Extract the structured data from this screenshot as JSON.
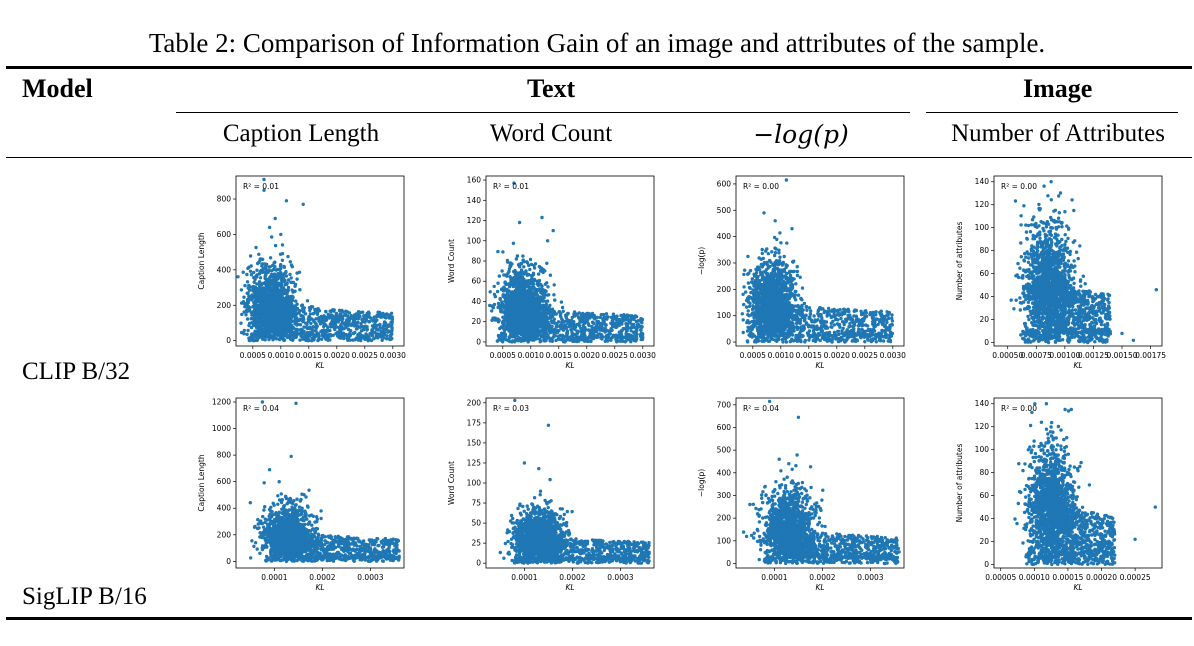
{
  "caption": "Table 2: Comparison of Information Gain of an image and attributes of the sample.",
  "header": {
    "model": "Model",
    "text_group": "Text",
    "image_group": "Image",
    "columns": [
      "Caption Length",
      "Word Count",
      "−log(p)",
      "Number of Attributes"
    ]
  },
  "rows": [
    {
      "label": "CLIP B/32",
      "plots": [
        {
          "ylabel": "Caption Length",
          "xlabel": "KL",
          "r2": "R² = 0.01",
          "xticks": [
            "0.0005",
            "0.0010",
            "0.0015",
            "0.0020",
            "0.0025",
            "0.0030"
          ],
          "yticks": [
            "0",
            "200",
            "400",
            "600",
            "800"
          ],
          "xlim": [
            0.0002,
            0.0032
          ],
          "ylim": [
            -30,
            930
          ],
          "cluster": {
            "xc": 0.00085,
            "yc": 160,
            "peak": 430,
            "tail_end": 0.003,
            "tail_y": 150
          },
          "outliers": [
            [
              0.0007,
              910
            ],
            [
              0.0007,
              850
            ],
            [
              0.0011,
              790
            ],
            [
              0.0014,
              770
            ],
            [
              0.0009,
              690
            ],
            [
              0.001,
              600
            ],
            [
              0.0008,
              640
            ]
          ]
        },
        {
          "ylabel": "Word Count",
          "xlabel": "KL",
          "r2": "R² = 0.01",
          "xticks": [
            "0.0005",
            "0.0010",
            "0.0015",
            "0.0020",
            "0.0025",
            "0.0030"
          ],
          "yticks": [
            "0",
            "20",
            "40",
            "60",
            "80",
            "100",
            "120",
            "140",
            "160"
          ],
          "xlim": [
            0.0002,
            0.0032
          ],
          "ylim": [
            -4,
            164
          ],
          "cluster": {
            "xc": 0.00085,
            "yc": 30,
            "peak": 75,
            "tail_end": 0.003,
            "tail_y": 25
          },
          "outliers": [
            [
              0.0007,
              157
            ],
            [
              0.0012,
              123
            ],
            [
              0.0014,
              110
            ],
            [
              0.0008,
              118
            ],
            [
              0.0013,
              100
            ]
          ]
        },
        {
          "ylabel": "−log(p)",
          "xlabel": "KL",
          "r2": "R² = 0.00",
          "xticks": [
            "0.0005",
            "0.0010",
            "0.0015",
            "0.0020",
            "0.0025",
            "0.0030"
          ],
          "yticks": [
            "0",
            "100",
            "200",
            "300",
            "400",
            "500",
            "600"
          ],
          "xlim": [
            0.0002,
            0.0032
          ],
          "ylim": [
            -15,
            630
          ],
          "cluster": {
            "xc": 0.00085,
            "yc": 130,
            "peak": 320,
            "tail_end": 0.003,
            "tail_y": 110
          },
          "outliers": [
            [
              0.0011,
              615
            ],
            [
              0.0007,
              490
            ],
            [
              0.0009,
              460
            ],
            [
              0.0012,
              430
            ]
          ]
        },
        {
          "ylabel": "Number of attributes",
          "xlabel": "KL",
          "r2": "R² = 0.00",
          "xticks": [
            "0.00050",
            "0.00075",
            "0.00100",
            "0.00125",
            "0.00150",
            "0.00175"
          ],
          "yticks": [
            "0",
            "20",
            "40",
            "60",
            "80",
            "100",
            "120",
            "140"
          ],
          "xlim": [
            0.00038,
            0.00185
          ],
          "ylim": [
            -3,
            145
          ],
          "cluster": {
            "xc": 0.00085,
            "yc": 45,
            "peak": 110,
            "tail_end": 0.0014,
            "tail_y": 40
          },
          "outliers": [
            [
              0.00088,
              140
            ],
            [
              0.0018,
              46
            ],
            [
              0.0015,
              8
            ],
            [
              0.0016,
              2
            ]
          ]
        }
      ]
    },
    {
      "label": "SigLIP B/16",
      "plots": [
        {
          "ylabel": "Caption Length",
          "xlabel": "KL",
          "r2": "R² = 0.04",
          "xticks": [
            "0.0001",
            "0.0002",
            "0.0003"
          ],
          "yticks": [
            "0",
            "200",
            "400",
            "600",
            "800",
            "1000",
            "1200"
          ],
          "xlim": [
            2e-05,
            0.00037
          ],
          "ylim": [
            -50,
            1230
          ],
          "cluster": {
            "xc": 0.00013,
            "yc": 170,
            "peak": 430,
            "tail_end": 0.00036,
            "tail_y": 160
          },
          "outliers": [
            [
              7.5e-05,
              1200
            ],
            [
              0.000145,
              1190
            ],
            [
              0.000135,
              790
            ],
            [
              9e-05,
              690
            ],
            [
              0.00011,
              600
            ]
          ]
        },
        {
          "ylabel": "Word Count",
          "xlabel": "KL",
          "r2": "R² = 0.03",
          "xticks": [
            "0.0001",
            "0.0002",
            "0.0003"
          ],
          "yticks": [
            "0",
            "25",
            "50",
            "75",
            "100",
            "125",
            "150",
            "175",
            "200"
          ],
          "xlim": [
            2e-05,
            0.00037
          ],
          "ylim": [
            -6,
            206
          ],
          "cluster": {
            "xc": 0.00013,
            "yc": 30,
            "peak": 70,
            "tail_end": 0.00036,
            "tail_y": 25
          },
          "outliers": [
            [
              8e-05,
              203
            ],
            [
              0.00015,
              172
            ],
            [
              0.0001,
              125
            ],
            [
              0.00013,
              118
            ]
          ]
        },
        {
          "ylabel": "−log(p)",
          "xlabel": "KL",
          "r2": "R² = 0.04",
          "xticks": [
            "0.0001",
            "0.0002",
            "0.0003"
          ],
          "yticks": [
            "0",
            "100",
            "200",
            "300",
            "400",
            "500",
            "600",
            "700"
          ],
          "xlim": [
            2e-05,
            0.00037
          ],
          "ylim": [
            -20,
            730
          ],
          "cluster": {
            "xc": 0.00013,
            "yc": 140,
            "peak": 340,
            "tail_end": 0.00036,
            "tail_y": 110
          },
          "outliers": [
            [
              9e-05,
              715
            ],
            [
              0.00015,
              645
            ],
            [
              0.00011,
              460
            ],
            [
              0.00013,
              440
            ]
          ]
        },
        {
          "ylabel": "Number of attributes",
          "xlabel": "KL",
          "r2": "R² = 0.00",
          "xticks": [
            "0.00005",
            "0.00010",
            "0.00015",
            "0.00020",
            "0.00025"
          ],
          "yticks": [
            "0",
            "20",
            "40",
            "60",
            "80",
            "100",
            "120",
            "140"
          ],
          "xlim": [
            4e-05,
            0.00029
          ],
          "ylim": [
            -3,
            145
          ],
          "cluster": {
            "xc": 0.000125,
            "yc": 45,
            "peak": 110,
            "tail_end": 0.00022,
            "tail_y": 40
          },
          "outliers": [
            [
              0.000118,
              140
            ],
            [
              0.000155,
              135
            ],
            [
              0.00028,
              50
            ],
            [
              0.00025,
              22
            ]
          ]
        }
      ]
    }
  ],
  "colors": {
    "points": "#1f77b4",
    "text": "#000000"
  }
}
